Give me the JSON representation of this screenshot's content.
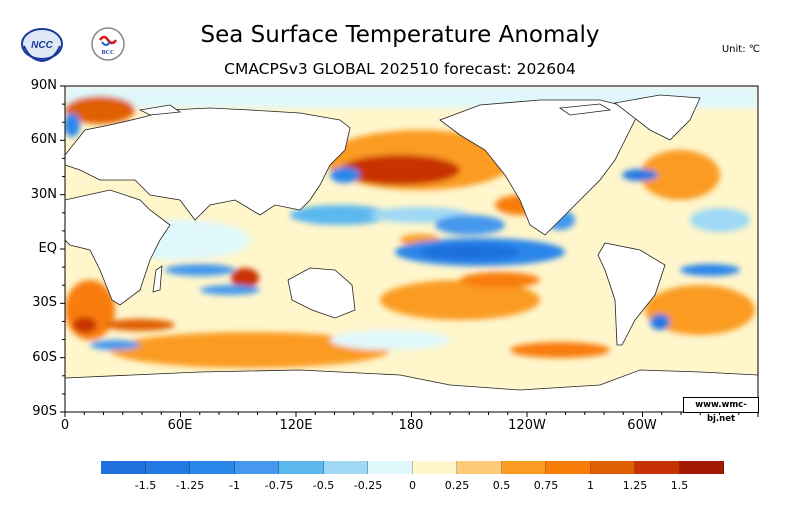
{
  "header": {
    "title": "Sea Surface Temperature Anomaly",
    "subtitle": "CMACPSv3 GLOBAL 202510 forecast: 202604",
    "unit": "Unit: ℃"
  },
  "logos": [
    {
      "name": "NCC",
      "text": "NCC"
    },
    {
      "name": "BCC",
      "text": "BCC"
    }
  ],
  "map": {
    "lat_labels": [
      "90N",
      "60N",
      "30N",
      "EQ",
      "30S",
      "60S",
      "90S"
    ],
    "lon_labels": [
      "0",
      "60E",
      "120E",
      "180",
      "120W",
      "60W"
    ],
    "credit": "www.wmc-bj.net"
  },
  "colorbar": {
    "colors": [
      "#1f6fdc",
      "#2379e3",
      "#2b86ea",
      "#4598ee",
      "#5ab8ef",
      "#9fd9f5",
      "#e0f8fb",
      "#fff6cc",
      "#fdcb77",
      "#fb9b21",
      "#f87d08",
      "#e05e04",
      "#c83103",
      "#a31a02"
    ],
    "labels": [
      "-1.5",
      "-1.25",
      "-1",
      "-0.75",
      "-0.5",
      "-0.25",
      "0",
      "0.25",
      "0.5",
      "0.75",
      "1",
      "1.25",
      "1.5"
    ]
  }
}
